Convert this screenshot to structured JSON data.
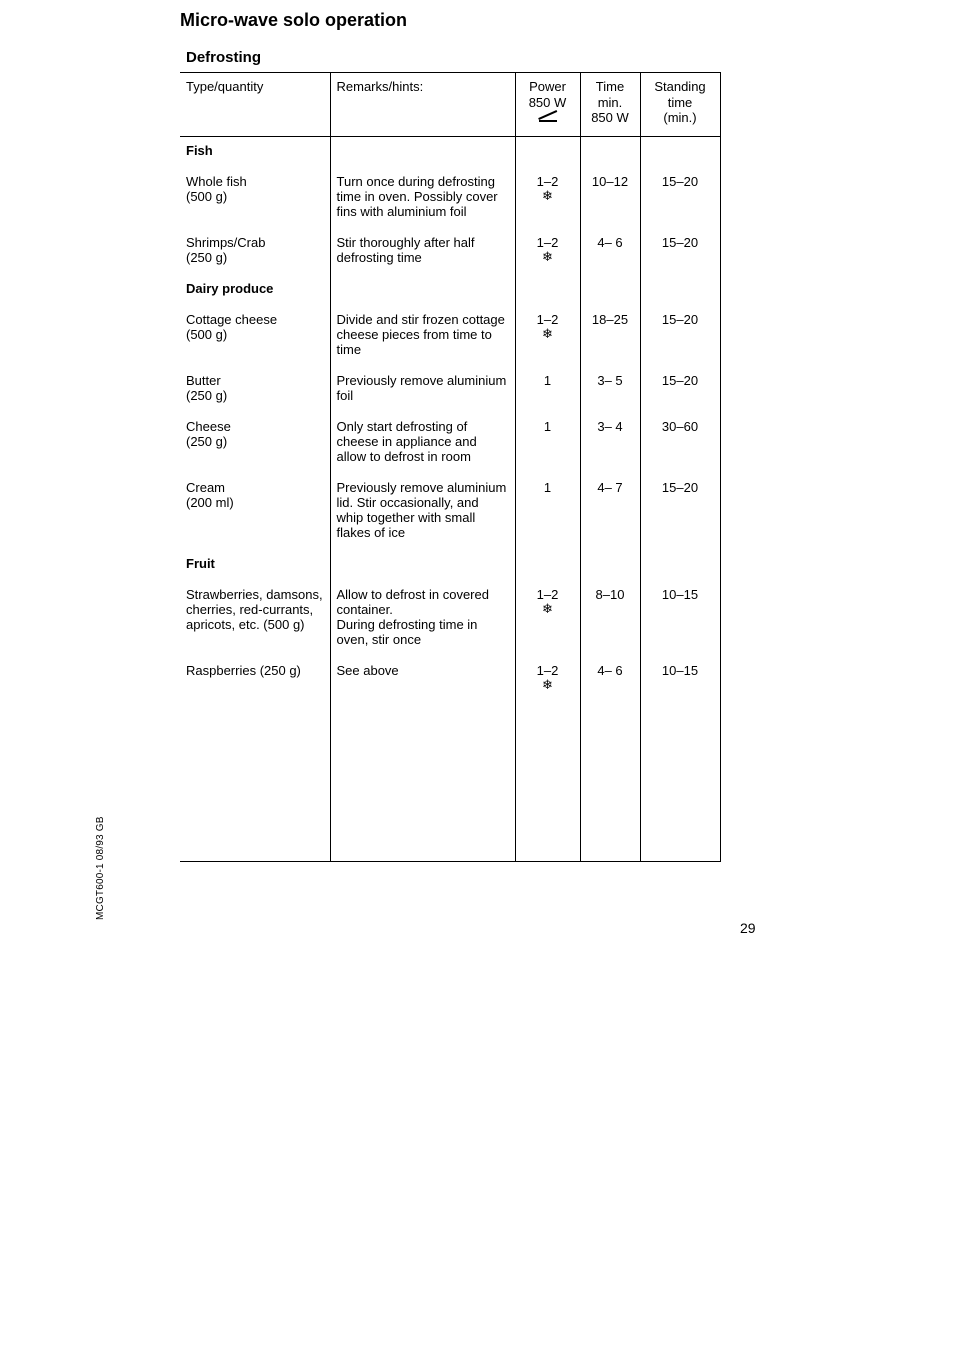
{
  "chapter_title": "Micro-wave solo operation",
  "section_title": "Defrosting",
  "side_note": "MCGT600-1 08/93   GB",
  "page_number": "29",
  "headers": {
    "type": "Type/quantity",
    "remarks": "Remarks/hints:",
    "power_l1": "Power",
    "power_l2": "850 W",
    "time_l1": "Time",
    "time_l2": "min.",
    "time_l3": "850 W",
    "stand_l1": "Standing",
    "stand_l2": "time",
    "stand_l3": "(min.)"
  },
  "categories": [
    {
      "name": "Fish",
      "items": [
        {
          "type": "Whole fish\n(500 g)",
          "remarks": "Turn once during defrosting time in oven. Possibly cover fins with aluminium foil",
          "power": "1–2",
          "has_snowflake": true,
          "time": "10–12",
          "standing": "15–20"
        },
        {
          "type": "Shrimps/Crab\n(250 g)",
          "remarks": "Stir thoroughly after half defrosting time",
          "power": "1–2",
          "has_snowflake": true,
          "time": "4– 6",
          "standing": "15–20"
        }
      ]
    },
    {
      "name": "Dairy produce",
      "items": [
        {
          "type": "Cottage cheese\n(500 g)",
          "remarks": "Divide and stir frozen cottage cheese pieces from time to time",
          "power": "1–2",
          "has_snowflake": true,
          "time": "18–25",
          "standing": "15–20"
        },
        {
          "type": "Butter\n(250 g)",
          "remarks": "Previously remove aluminium foil",
          "power": "1",
          "has_snowflake": false,
          "time": "3– 5",
          "standing": "15–20"
        },
        {
          "type": "Cheese\n(250 g)",
          "remarks": "Only start defrosting of cheese in appliance and allow to defrost in room",
          "power": "1",
          "has_snowflake": false,
          "time": "3– 4",
          "standing": "30–60"
        },
        {
          "type": "Cream\n(200 ml)",
          "remarks": "Previously remove aluminium lid. Stir occasionally, and whip together with small flakes of ice",
          "power": "1",
          "has_snowflake": false,
          "time": "4– 7",
          "standing": "15–20"
        }
      ]
    },
    {
      "name": "Fruit",
      "items": [
        {
          "type": "Strawberries, damsons, cherries, red-currants, apricots, etc. (500 g)",
          "remarks": "Allow to defrost in covered container.\nDuring defrosting time in oven, stir once",
          "power": "1–2",
          "has_snowflake": true,
          "time": "8–10",
          "standing": "10–15"
        },
        {
          "type": "Raspberries (250 g)",
          "remarks": "See above",
          "power": "1–2",
          "has_snowflake": true,
          "time": "4– 6",
          "standing": "10–15"
        }
      ]
    }
  ]
}
